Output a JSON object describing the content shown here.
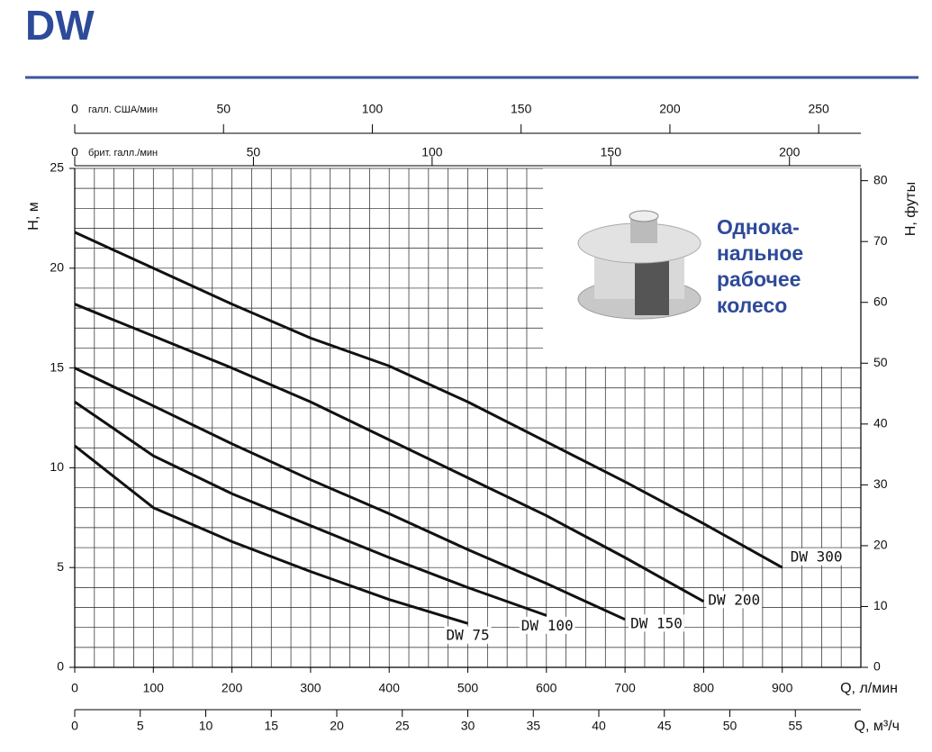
{
  "chart_data": {
    "type": "line",
    "title": "DW",
    "photo_caption": [
      "Однока-",
      "нальное",
      "рабочее",
      "колесо"
    ],
    "xlabel": "Q, л/мин",
    "ylabel": "H, м",
    "xlim": [
      0,
      1000
    ],
    "xticks": [
      0,
      100,
      200,
      300,
      400,
      500,
      600,
      700,
      800,
      900
    ],
    "ylim": [
      0,
      25
    ],
    "yticks": [
      0,
      5,
      10,
      15,
      20,
      25
    ],
    "y2label": "H, футы",
    "y2lim": [
      0,
      82.02
    ],
    "y2ticks": [
      0,
      10,
      20,
      30,
      40,
      50,
      60,
      70,
      80
    ],
    "x_m3h": {
      "label": "Q, м³/ч",
      "lim": [
        0,
        60
      ],
      "ticks": [
        0,
        5,
        10,
        15,
        20,
        25,
        30,
        35,
        40,
        45,
        50,
        55
      ]
    },
    "x_usgal": {
      "label": "галл. США/мин",
      "lim": [
        0,
        264.17
      ],
      "ticks": [
        0,
        50,
        100,
        150,
        200,
        250
      ]
    },
    "x_impgal": {
      "label": "брит. галл./мин",
      "lim": [
        0,
        219.97
      ],
      "ticks": [
        0,
        50,
        100,
        150,
        200
      ]
    },
    "grid": {
      "x_step": 25,
      "y_step": 1
    },
    "x": [
      0,
      100,
      200,
      300,
      400,
      500,
      600,
      700,
      800,
      900
    ],
    "series": [
      {
        "name": "DW 300",
        "color": "#111111",
        "values": [
          21.8,
          20.0,
          18.2,
          16.5,
          15.1,
          13.3,
          11.3,
          9.3,
          7.2,
          5.0
        ]
      },
      {
        "name": "DW 200",
        "color": "#111111",
        "values": [
          18.2,
          16.6,
          15.0,
          13.3,
          11.4,
          9.5,
          7.6,
          5.5,
          3.3,
          null
        ]
      },
      {
        "name": "DW 150",
        "color": "#111111",
        "values": [
          15.0,
          13.1,
          11.2,
          9.4,
          7.7,
          5.9,
          4.2,
          2.4,
          null,
          null
        ]
      },
      {
        "name": "DW 100",
        "color": "#111111",
        "values": [
          13.3,
          10.6,
          8.7,
          7.1,
          5.5,
          4.0,
          2.6,
          null,
          null,
          null
        ]
      },
      {
        "name": "DW 75",
        "color": "#111111",
        "values": [
          11.1,
          8.0,
          6.3,
          4.8,
          3.4,
          2.2,
          null,
          null,
          null,
          null
        ]
      }
    ]
  }
}
